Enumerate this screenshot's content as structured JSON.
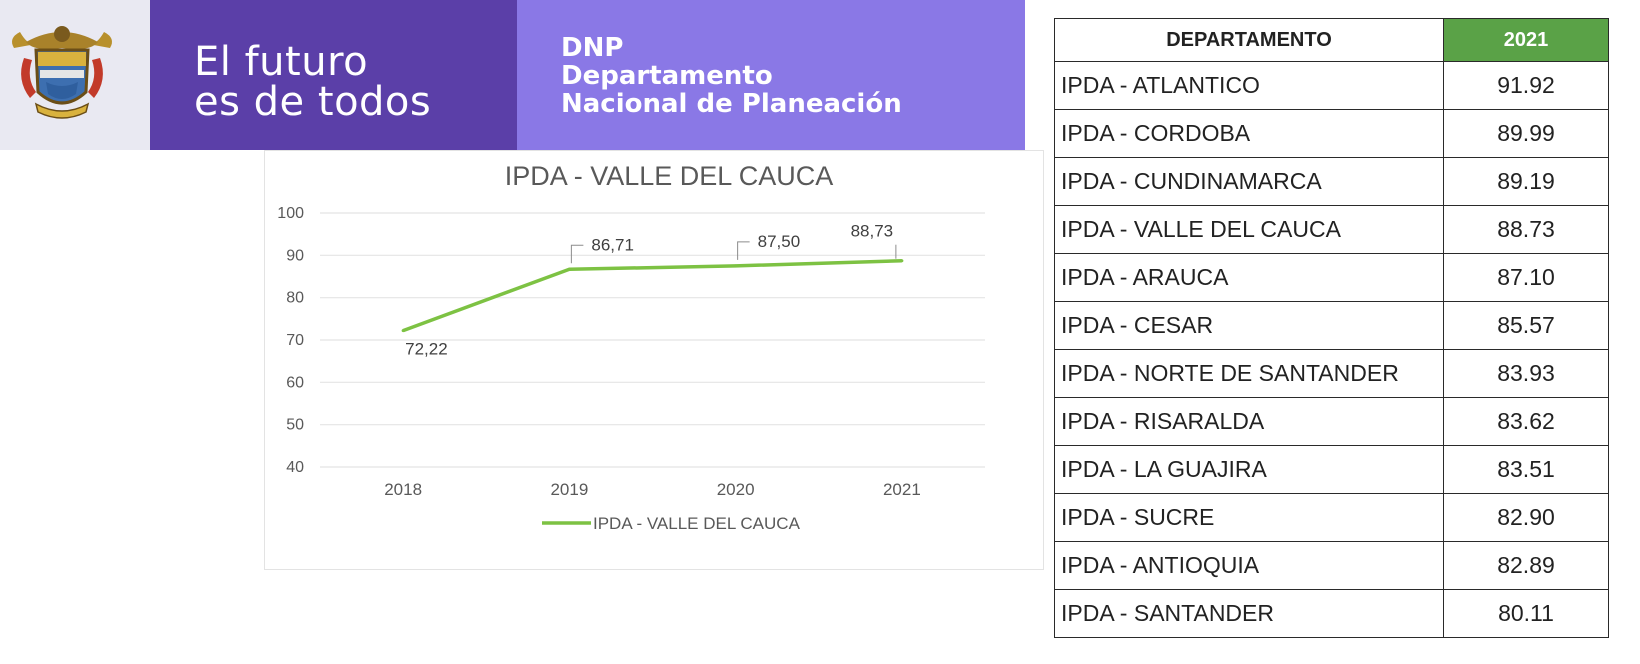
{
  "banner": {
    "slogan_line1": "El futuro",
    "slogan_line2": "es de todos",
    "dnp_line1": "DNP",
    "dnp_line2": "Departamento",
    "dnp_line3": "Nacional de Planeación",
    "colors": {
      "crest_bg": "#e9e9f2",
      "slogan_bg": "#5b3fa8",
      "dnp_bg": "#8a78e6"
    }
  },
  "chart_data": {
    "type": "line",
    "title": "IPDA - VALLE DEL CAUCA",
    "categories": [
      "2018",
      "2019",
      "2020",
      "2021"
    ],
    "series": [
      {
        "name": "IPDA - VALLE DEL CAUCA",
        "values": [
          72.22,
          86.71,
          87.5,
          88.73
        ],
        "color": "#7dc243"
      }
    ],
    "data_labels": [
      "72,22",
      "86,71",
      "87,50",
      "88,73"
    ],
    "yticks": [
      "100",
      "90",
      "80",
      "70",
      "60",
      "50",
      "40"
    ],
    "ylim": [
      40,
      100
    ],
    "grid": true,
    "legend": "bottom"
  },
  "table": {
    "headers": [
      "DEPARTAMENTO",
      "2021"
    ],
    "header_colors": {
      "year_bg": "#5aa247"
    },
    "rows": [
      [
        "IPDA - ATLANTICO",
        "91.92"
      ],
      [
        "IPDA - CORDOBA",
        "89.99"
      ],
      [
        "IPDA - CUNDINAMARCA",
        "89.19"
      ],
      [
        "IPDA - VALLE DEL CAUCA",
        "88.73"
      ],
      [
        "IPDA - ARAUCA",
        "87.10"
      ],
      [
        "IPDA - CESAR",
        "85.57"
      ],
      [
        "IPDA - NORTE DE SANTANDER",
        "83.93"
      ],
      [
        "IPDA - RISARALDA",
        "83.62"
      ],
      [
        "IPDA - LA GUAJIRA",
        "83.51"
      ],
      [
        "IPDA - SUCRE",
        "82.90"
      ],
      [
        "IPDA - ANTIOQUIA",
        "82.89"
      ],
      [
        "IPDA - SANTANDER",
        "80.11"
      ]
    ]
  }
}
